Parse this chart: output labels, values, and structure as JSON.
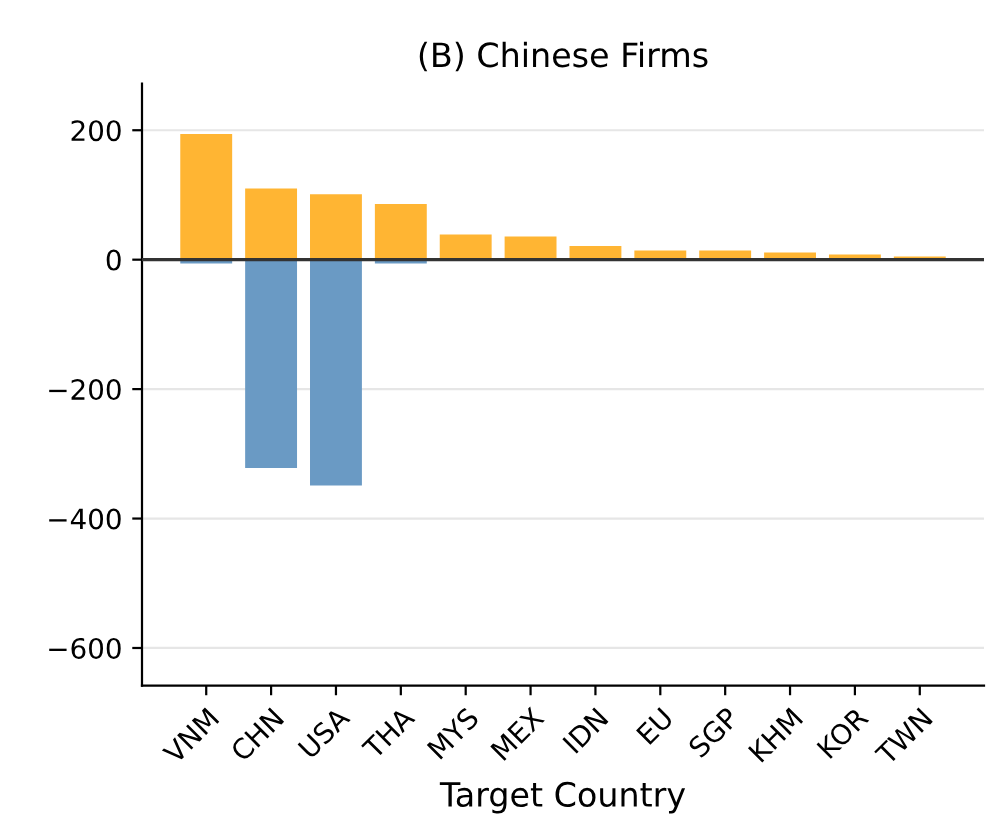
{
  "chart_data": {
    "type": "bar",
    "title": "(B) Chinese Firms",
    "xlabel": "Target Country",
    "categories": [
      "VNM",
      "CHN",
      "USA",
      "THA",
      "MYS",
      "MEX",
      "IDN",
      "EU",
      "SGP",
      "KHM",
      "KOR",
      "TWN"
    ],
    "series": [
      {
        "color": "#6a9ac4",
        "values": [
          -6,
          -322,
          -349,
          -6,
          null,
          null,
          null,
          null,
          null,
          null,
          null,
          null
        ]
      },
      {
        "color": "#ffb533",
        "values": [
          194,
          110,
          101,
          86,
          39,
          36,
          21,
          14,
          14,
          11,
          8,
          5
        ]
      }
    ],
    "ref_lines": [
      {
        "axis": "y",
        "value": 0,
        "color": "#333333"
      }
    ],
    "ylim": [
      -658,
      272
    ],
    "yticks": [
      {
        "value": -600,
        "label": "−600"
      },
      {
        "value": -400,
        "label": "−400"
      },
      {
        "value": -200,
        "label": "−200"
      },
      0,
      200
    ],
    "grid": "y",
    "legend": false
  }
}
